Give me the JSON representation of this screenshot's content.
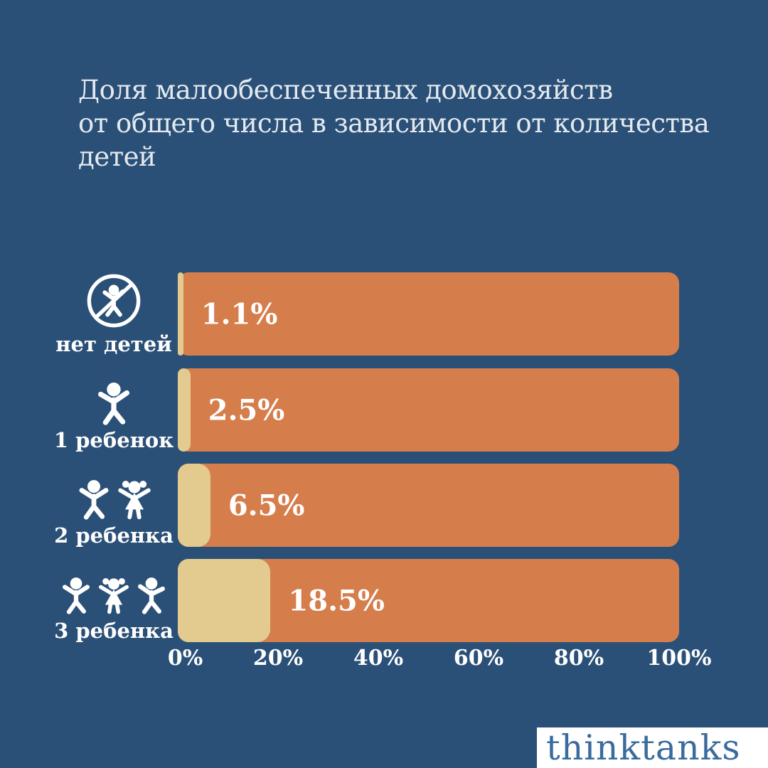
{
  "background_color": "#2B5077",
  "title_lines": [
    "Доля малообеспеченных домохозяйств",
    "от общего числа в зависимости от количества",
    "детей"
  ],
  "chart_data": {
    "type": "bar",
    "orientation": "horizontal",
    "title": "Доля малообеспеченных домохозяйств от общего числа в зависимости от количества детей",
    "categories": [
      "нет детей",
      "1 ребенок",
      "2 ребенка",
      "3 ребенка"
    ],
    "values": [
      1.1,
      2.5,
      6.5,
      18.5
    ],
    "value_labels": [
      "1.1%",
      "2.5%",
      "6.5%",
      "18.5%"
    ],
    "x_ticks": [
      "0%",
      "20%",
      "40%",
      "60%",
      "80%",
      "100%"
    ],
    "xlim": [
      0,
      100
    ],
    "grid": false,
    "legend": false,
    "bar_fill_color": "#E3CA8F",
    "bar_remainder_color": "#D57E4C",
    "text_color": "#FFFFFF",
    "icons": [
      "no-children-icon",
      "one-child-icon",
      "two-children-icon",
      "three-children-icon"
    ]
  },
  "footer": {
    "logo_text": "thinktanks",
    "logo_text_color": "#3A6B9C",
    "logo_background": "#FFFFFF"
  }
}
